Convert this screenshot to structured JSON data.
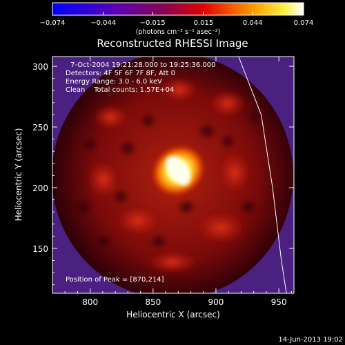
{
  "colorbar": {
    "tick_labels": [
      "−0.074",
      "−0.044",
      "−0.015",
      "0.015",
      "0.044",
      "0.074"
    ],
    "tick_values": [
      -0.074,
      -0.044,
      -0.015,
      0.015,
      0.044,
      0.074
    ],
    "range": [
      -0.074,
      0.074
    ],
    "units_text": "(photons cm⁻² s⁻¹ asec⁻²)",
    "colors": [
      "#0000ff",
      "#ff00ff",
      "#ff0000",
      "#ffff00",
      "#ffffff"
    ]
  },
  "chart_data": {
    "type": "heatmap",
    "title": "Reconstructed RHESSI Image",
    "xlabel": "Heliocentric X (arcsec)",
    "ylabel": "Heliocentric Y (arcsec)",
    "xlim": [
      770,
      962
    ],
    "ylim": [
      113,
      308
    ],
    "x_ticks": [
      800,
      850,
      900,
      950
    ],
    "y_ticks": [
      150,
      200,
      250,
      300
    ],
    "peak_value": 0.074,
    "peak_position": [
      870,
      214
    ],
    "limb_curve": [
      [
        918,
        308
      ],
      [
        936,
        260
      ],
      [
        945,
        200
      ],
      [
        952,
        140
      ],
      [
        956,
        113
      ]
    ],
    "annotations": [
      "7-Oct-2004 19:21:28.000 to 19:25:36.000",
      "Detectors: 4F 5F 6F 7F 8F, Att 0",
      "Energy Range: 3.0 - 6.0 keV",
      "Clean    Total counts: 1.57E+04"
    ],
    "peak_label": "Position of Peak = [870,214]"
  },
  "footer": {
    "timestamp": "14-Jun-2013 19:02"
  }
}
